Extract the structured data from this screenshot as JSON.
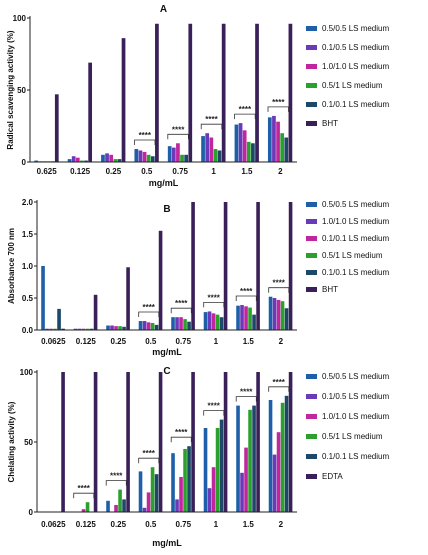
{
  "colors": {
    "s1": "#1f5fa8",
    "s2": "#6a3ab8",
    "s3": "#c0269e",
    "s4": "#2ca02c",
    "s5": "#1d4868",
    "ref": "#3a2058"
  },
  "chart_data": [
    {
      "panel": "A",
      "type": "bar",
      "title": "A",
      "xlabel": "mg/mL",
      "ylabel": "Radical scavenging activity (%)",
      "ylim": [
        0,
        100
      ],
      "yticks": [
        "0",
        "50",
        "100"
      ],
      "categories": [
        "0.625",
        "0.125",
        "0.25",
        "0.5",
        "0.75",
        "1",
        "1.5",
        "2"
      ],
      "legend_position": "right",
      "series": [
        {
          "name": "0.5/0.5 LS medium",
          "color_key": "s1",
          "values": [
            1,
            2,
            5,
            9,
            11,
            18,
            26,
            31
          ]
        },
        {
          "name": "0.1/0.5 LS medium",
          "color_key": "s2",
          "values": [
            0.5,
            4,
            6,
            8,
            10,
            20,
            27,
            32
          ]
        },
        {
          "name": "1.0/1.0 LS medium",
          "color_key": "s3",
          "values": [
            0.5,
            3,
            5,
            7,
            13,
            17,
            22,
            28
          ]
        },
        {
          "name": "0.5/1 LS medium",
          "color_key": "s4",
          "values": [
            0.5,
            1,
            2,
            5,
            5,
            9,
            14,
            20
          ]
        },
        {
          "name": "0.1/0.1 LS medium",
          "color_key": "s5",
          "values": [
            0.5,
            1,
            2,
            4,
            5,
            8,
            13,
            17
          ]
        },
        {
          "name": "BHT",
          "color_key": "ref",
          "values": [
            47,
            69,
            86,
            96,
            96,
            96,
            96,
            96
          ]
        }
      ],
      "significance": [
        {
          "from": 3,
          "label": "****"
        },
        {
          "from": 4,
          "label": "****"
        },
        {
          "from": 5,
          "label": "****"
        },
        {
          "from": 6,
          "label": "****"
        },
        {
          "from": 7,
          "label": "****"
        }
      ]
    },
    {
      "panel": "B",
      "type": "bar",
      "title": "B",
      "xlabel": "mg/mL",
      "ylabel": "Absorbance 700 nm",
      "ylim": [
        0,
        2.0
      ],
      "yticks": [
        "0.0",
        "0.5",
        "1.0",
        "1.5",
        "2.0"
      ],
      "categories": [
        "0.0625",
        "0.125",
        "0.25",
        "0.5",
        "0.75",
        "1",
        "1.5",
        "2"
      ],
      "legend_position": "right",
      "series": [
        {
          "name": "0.5/0.5 LS medium",
          "color_key": "s1",
          "values": [
            1.0,
            0.02,
            0.07,
            0.14,
            0.2,
            0.28,
            0.38,
            0.52
          ]
        },
        {
          "name": "1.0/1.0 LS medium",
          "color_key": "s2",
          "values": [
            0.02,
            0.02,
            0.07,
            0.14,
            0.2,
            0.29,
            0.39,
            0.5
          ]
        },
        {
          "name": "0.1/0.1 LS medium",
          "color_key": "s3",
          "values": [
            0.02,
            0.02,
            0.06,
            0.12,
            0.2,
            0.26,
            0.37,
            0.47
          ]
        },
        {
          "name": "0.5/1 LS medium",
          "color_key": "s4",
          "values": [
            0.02,
            0.02,
            0.06,
            0.11,
            0.17,
            0.24,
            0.35,
            0.45
          ]
        },
        {
          "name": "0.1/0.1 LS medium",
          "color_key": "s5",
          "values": [
            0.33,
            0.02,
            0.05,
            0.08,
            0.13,
            0.2,
            0.24,
            0.34
          ]
        },
        {
          "name": "BHT",
          "color_key": "ref",
          "values": [
            0.02,
            0.55,
            0.98,
            1.55,
            2.0,
            2.0,
            2.0,
            2.0
          ]
        }
      ],
      "significance": [
        {
          "from": 3,
          "label": "****"
        },
        {
          "from": 4,
          "label": "****"
        },
        {
          "from": 5,
          "label": "****"
        },
        {
          "from": 6,
          "label": "****"
        },
        {
          "from": 7,
          "label": "****"
        }
      ]
    },
    {
      "panel": "C",
      "type": "bar",
      "title": "C",
      "xlabel": "mg/mL",
      "ylabel": "Chelating activity (%)",
      "ylim": [
        0,
        100
      ],
      "yticks": [
        "0",
        "50",
        "100"
      ],
      "categories": [
        "0.0625",
        "0.125",
        "0.25",
        "0.5",
        "0.75",
        "1",
        "1.5",
        "2"
      ],
      "legend_position": "right",
      "series": [
        {
          "name": "0.5/0.5 LS medium",
          "color_key": "s1",
          "values": [
            0,
            0,
            8,
            29,
            42,
            60,
            76,
            80
          ]
        },
        {
          "name": "0.1/0.5 LS medium",
          "color_key": "s2",
          "values": [
            0,
            0,
            0,
            3,
            9,
            17,
            28,
            41
          ]
        },
        {
          "name": "1.0/1.0 LS medium",
          "color_key": "s3",
          "values": [
            0,
            2,
            5,
            14,
            25,
            32,
            46,
            57
          ]
        },
        {
          "name": "0.5/1 LS medium",
          "color_key": "s4",
          "values": [
            0,
            7,
            16,
            32,
            45,
            60,
            73,
            78
          ]
        },
        {
          "name": "0.1/0.1 LS medium",
          "color_key": "s5",
          "values": [
            0,
            0,
            9,
            27,
            47,
            66,
            76,
            83
          ]
        },
        {
          "name": "EDTA",
          "color_key": "ref",
          "values": [
            100,
            100,
            100,
            100,
            100,
            100,
            100,
            100
          ]
        }
      ],
      "significance": [
        {
          "from": 1,
          "label": "****"
        },
        {
          "from": 2,
          "label": "****"
        },
        {
          "from": 3,
          "label": "****"
        },
        {
          "from": 4,
          "label": "****"
        },
        {
          "from": 5,
          "label": "****"
        },
        {
          "from": 6,
          "label": "****"
        },
        {
          "from": 7,
          "label": "****"
        }
      ]
    }
  ]
}
